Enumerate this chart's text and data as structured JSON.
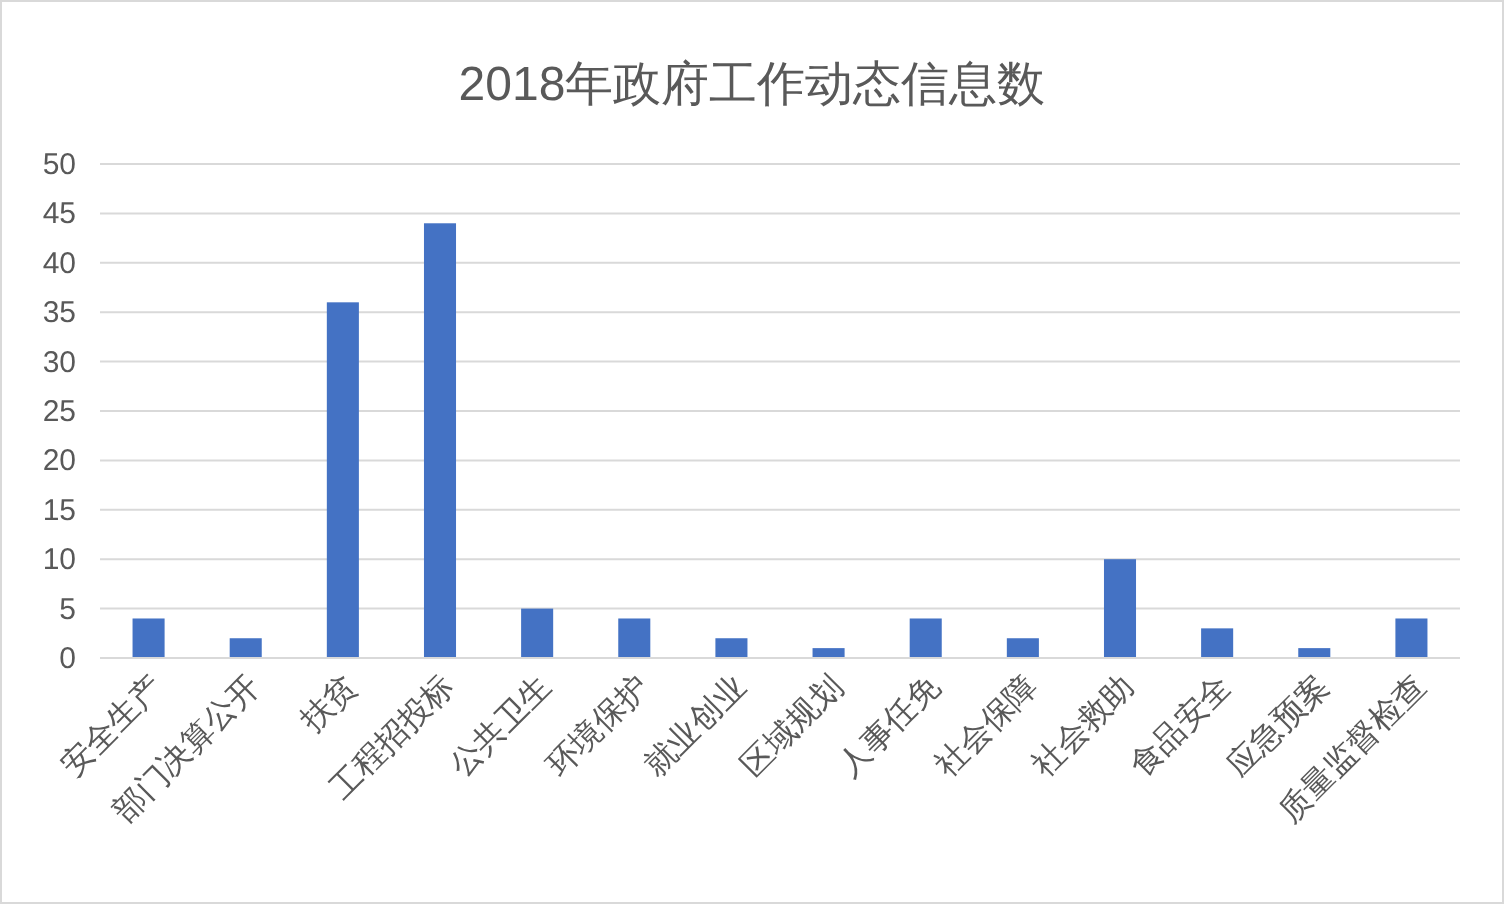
{
  "chart_data": {
    "type": "bar",
    "title": "2018年政府工作动态信息数",
    "categories": [
      "安全生产",
      "部门决算公开",
      "扶贫",
      "工程招投标",
      "公共卫生",
      "环境保护",
      "就业创业",
      "区域规划",
      "人事任免",
      "社会保障",
      "社会救助",
      "食品安全",
      "应急预案",
      "质量监督检查"
    ],
    "values": [
      4,
      2,
      36,
      44,
      5,
      4,
      2,
      1,
      4,
      2,
      10,
      3,
      1,
      4
    ],
    "color": "#4472c4",
    "ylim": [
      0,
      50
    ],
    "yticks": [
      0,
      5,
      10,
      15,
      20,
      25,
      30,
      35,
      40,
      45,
      50
    ],
    "grid": "y"
  }
}
